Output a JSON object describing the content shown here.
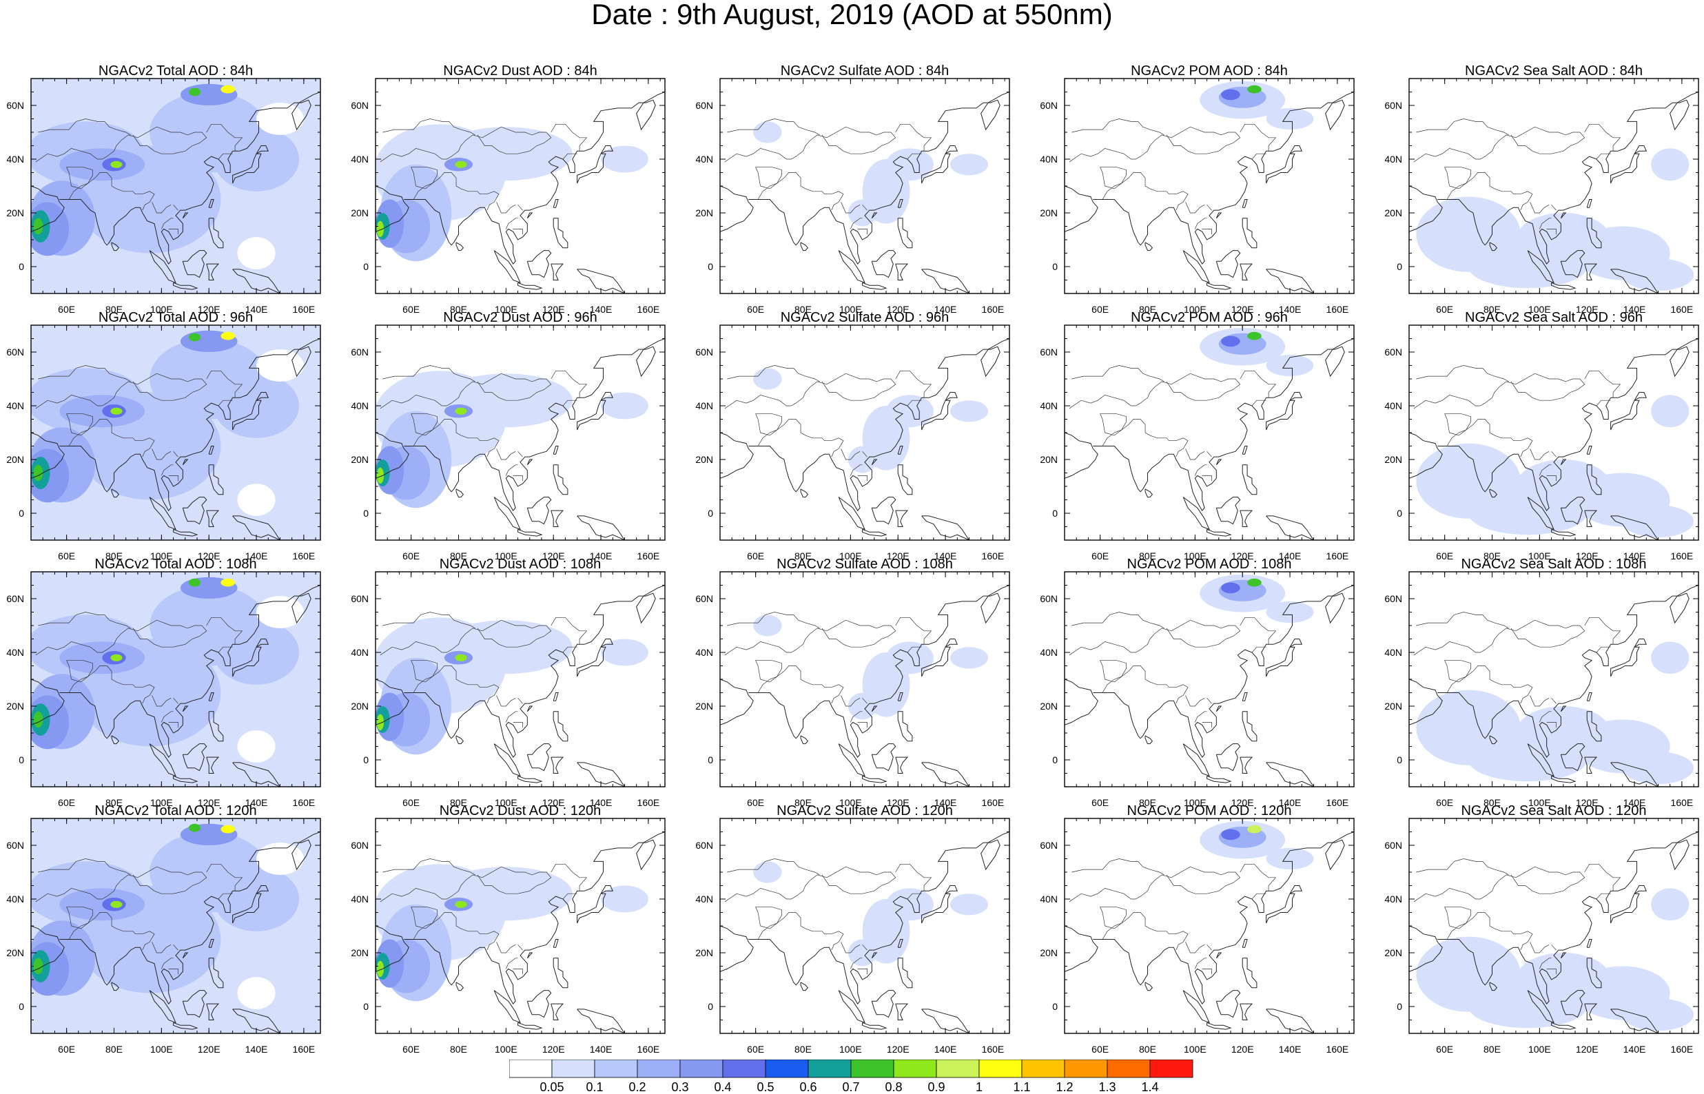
{
  "title": "Date : 9th August, 2019 (AOD at 550nm)",
  "lon_labels": [
    "60E",
    "80E",
    "100E",
    "120E",
    "140E",
    "160E"
  ],
  "lat_labels": [
    "60N",
    "40N",
    "20N",
    "0"
  ],
  "rows": [
    {
      "panels": [
        "NGACv2 Total AOD : 84h",
        "NGACv2 Dust AOD : 84h",
        "NGACv2 Sulfate AOD : 84h",
        "NGACv2 POM AOD : 84h",
        "NGACv2 Sea Salt AOD : 84h"
      ]
    },
    {
      "panels": [
        "NGACv2 Total AOD : 96h",
        "NGACv2 Dust AOD : 96h",
        "NGACv2 Sulfate AOD : 96h",
        "NGACv2 POM AOD : 96h",
        "NGACv2 Sea Salt AOD : 96h"
      ]
    },
    {
      "panels": [
        "NGACv2 Total AOD : 108h",
        "NGACv2 Dust AOD : 108h",
        "NGACv2 Sulfate AOD : 108h",
        "NGACv2 POM AOD : 108h",
        "NGACv2 Sea Salt AOD : 108h"
      ]
    },
    {
      "panels": [
        "NGACv2 Total AOD : 120h",
        "NGACv2 Dust AOD : 120h",
        "NGACv2 Sulfate AOD : 120h",
        "NGACv2 POM AOD : 120h",
        "NGACv2 Sea Salt  AOD : 120h"
      ]
    }
  ],
  "colorbar": {
    "labels": [
      "0.05",
      "0.1",
      "0.2",
      "0.3",
      "0.4",
      "0.5",
      "0.6",
      "0.7",
      "0.8",
      "0.9",
      "1",
      "1.1",
      "1.2",
      "1.3",
      "1.4"
    ],
    "colors": [
      "#ffffff",
      "#d6e0fc",
      "#b8c8fa",
      "#9db0f7",
      "#8598f2",
      "#6270ee",
      "#1a5cf0",
      "#14a09a",
      "#3ec42a",
      "#8ee81c",
      "#ccf25a",
      "#ffff10",
      "#ffc400",
      "#ff9800",
      "#ff6b00",
      "#ff1a10"
    ]
  }
}
